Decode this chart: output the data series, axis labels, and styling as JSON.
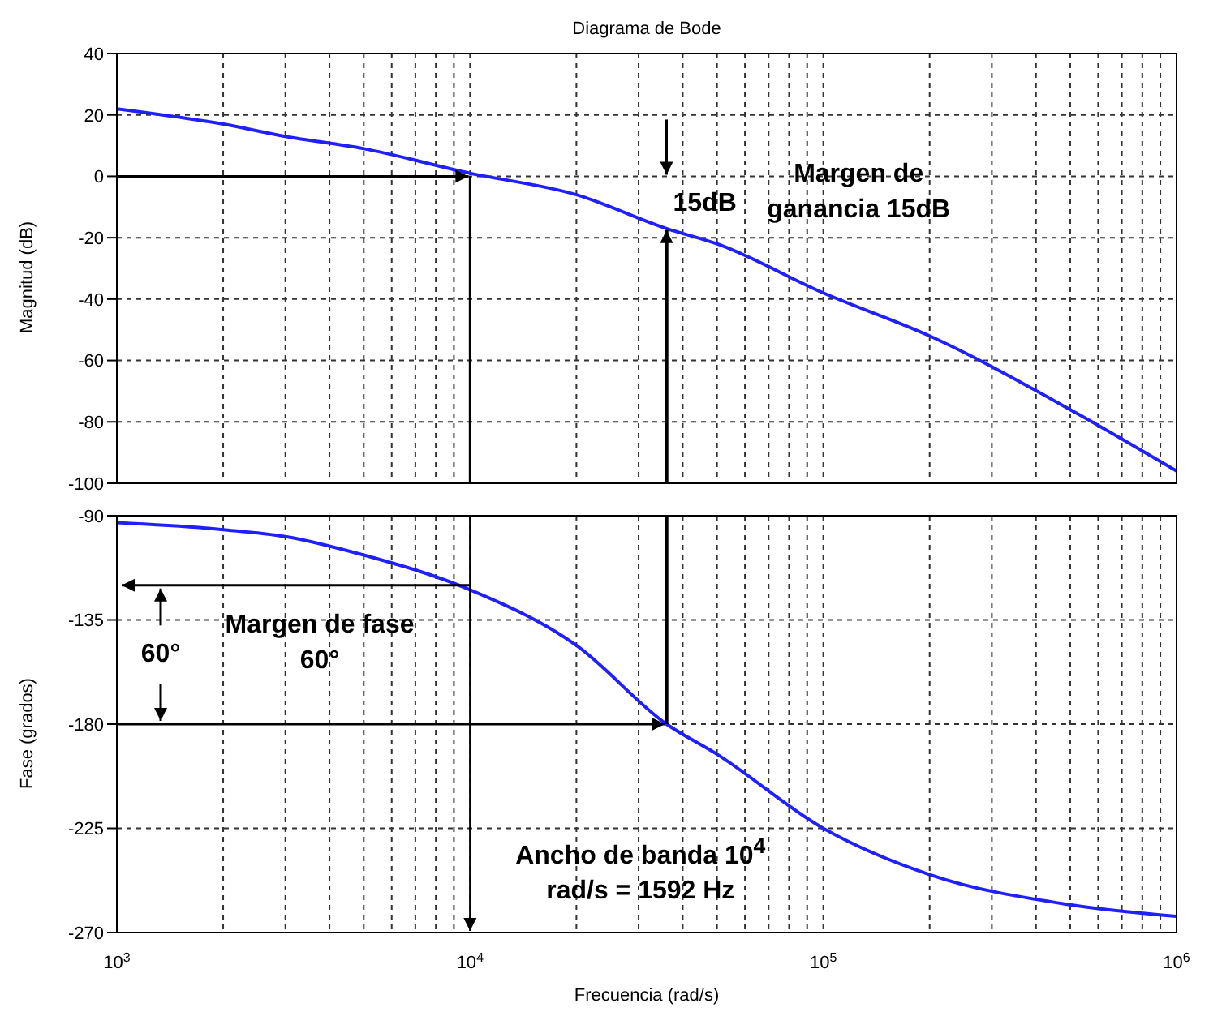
{
  "chart_data": [
    {
      "type": "line",
      "title": "Diagrama de Bode",
      "ylabel": "Magnitud (dB)",
      "tick_labels": "y",
      "grid": true,
      "log": "x",
      "x": [
        1000,
        2000,
        3000,
        5000,
        10000,
        20000,
        36000,
        50000,
        100000,
        200000,
        500000,
        1000000
      ],
      "series": [
        {
          "color": "#1f1fff",
          "values": [
            22,
            17,
            13,
            9,
            1,
            -6,
            -17,
            -22,
            -38,
            -52,
            -76,
            -96
          ]
        }
      ],
      "xlim": [
        1000,
        1000000
      ],
      "ylim": [
        -100,
        40
      ],
      "yticks": [
        -100,
        -80,
        -60,
        -40,
        -20,
        0,
        20,
        40
      ],
      "xticks": [
        1000,
        2000,
        3000,
        4000,
        5000,
        6000,
        7000,
        8000,
        9000,
        10000,
        20000,
        30000,
        40000,
        50000,
        60000,
        70000,
        80000,
        90000,
        100000,
        200000,
        300000,
        400000,
        500000,
        600000,
        700000,
        800000,
        900000,
        1000000
      ],
      "ref_lines": [
        {
          "axis": "y",
          "value": 0
        },
        {
          "axis": "x",
          "value": 10000
        },
        {
          "axis": "x",
          "value": 36000
        }
      ],
      "annotations": [
        "15dB",
        "Margen de ganancia 15dB"
      ]
    },
    {
      "type": "line",
      "xlabel": "Frecuencia (rad/s)",
      "ylabel": "Fase (grados)",
      "grid": true,
      "log": "x",
      "x": [
        1000,
        2000,
        3000,
        5000,
        10000,
        20000,
        36000,
        50000,
        100000,
        200000,
        500000,
        1000000
      ],
      "series": [
        {
          "color": "#1f1fff",
          "values": [
            -93,
            -96,
            -99,
            -107,
            -122,
            -146,
            -180,
            -193,
            -225,
            -245,
            -258,
            -263
          ]
        }
      ],
      "xlim": [
        1000,
        1000000
      ],
      "ylim": [
        -270,
        -90
      ],
      "yticks": [
        -270,
        -225,
        -180,
        -135,
        -90
      ],
      "xticks": [
        {
          "value": 1000,
          "label": "10$^{3}$"
        },
        {
          "value": 2000,
          "label": null
        },
        {
          "value": 3000,
          "label": null
        },
        {
          "value": 4000,
          "label": null
        },
        {
          "value": 5000,
          "label": null
        },
        {
          "value": 6000,
          "label": null
        },
        {
          "value": 7000,
          "label": null
        },
        {
          "value": 8000,
          "label": null
        },
        {
          "value": 9000,
          "label": null
        },
        {
          "value": 10000,
          "label": "10$^{4}$"
        },
        {
          "value": 20000,
          "label": null
        },
        {
          "value": 30000,
          "label": null
        },
        {
          "value": 40000,
          "label": null
        },
        {
          "value": 50000,
          "label": null
        },
        {
          "value": 60000,
          "label": null
        },
        {
          "value": 70000,
          "label": null
        },
        {
          "value": 80000,
          "label": null
        },
        {
          "value": 90000,
          "label": null
        },
        {
          "value": 100000,
          "label": "10$^{5}$"
        },
        {
          "value": 200000,
          "label": null
        },
        {
          "value": 300000,
          "label": null
        },
        {
          "value": 400000,
          "label": null
        },
        {
          "value": 500000,
          "label": null
        },
        {
          "value": 600000,
          "label": null
        },
        {
          "value": 700000,
          "label": null
        },
        {
          "value": 800000,
          "label": null
        },
        {
          "value": 900000,
          "label": null
        },
        {
          "value": 1000000,
          "label": "10$^{6}$"
        }
      ],
      "ref_lines": [
        {
          "axis": "x",
          "value": 10000
        },
        {
          "axis": "y",
          "value": -120
        },
        {
          "axis": "y",
          "value": -180
        },
        {
          "axis": "x",
          "value": 36000
        }
      ],
      "annotations": [
        "Margen de fase 60°",
        "60°",
        "Ancho de banda 10$^{4}$ rad/s = 1592 Hz"
      ]
    }
  ]
}
